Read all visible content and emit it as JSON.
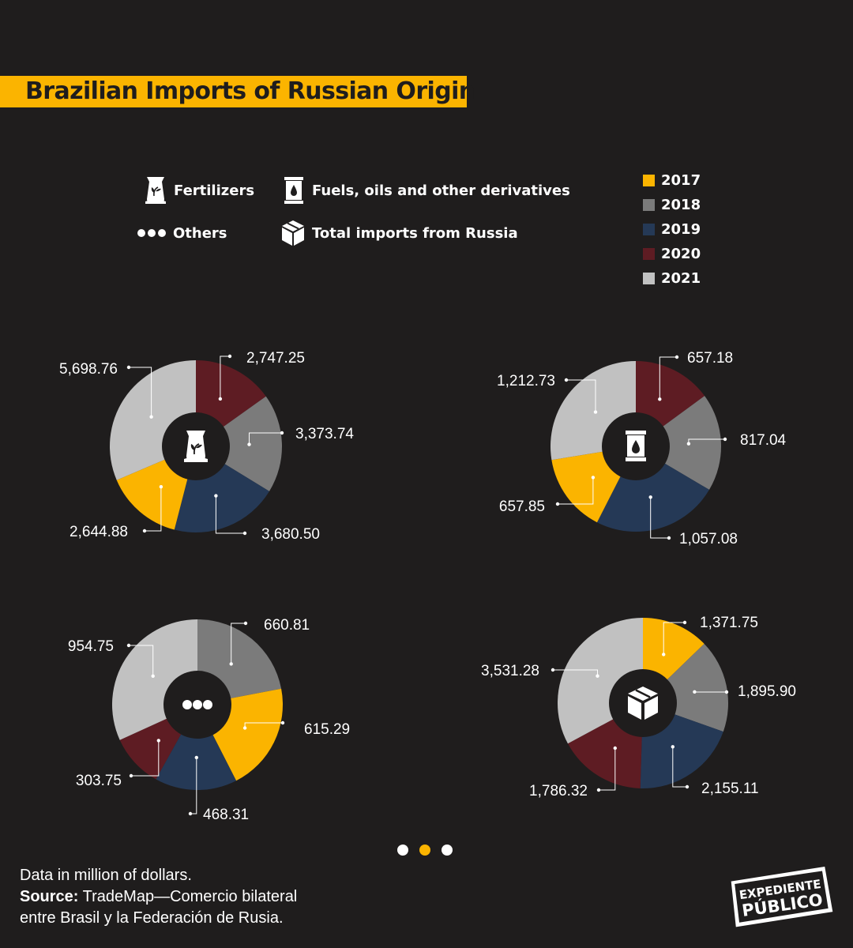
{
  "title": "Brazilian Imports of Russian Origin",
  "legend": {
    "categories": [
      {
        "label": "Fertilizers",
        "icon": "fertilizer-bag-icon"
      },
      {
        "label": "Fuels, oils and other derivatives",
        "icon": "oil-barrel-icon"
      },
      {
        "label": "Others",
        "icon": "dots-icon"
      },
      {
        "label": "Total imports from Russia",
        "icon": "box-icon"
      }
    ],
    "years": [
      {
        "label": "2017",
        "color": "#fbb400"
      },
      {
        "label": "2018",
        "color": "#7b7b7b"
      },
      {
        "label": "2019",
        "color": "#253956"
      },
      {
        "label": "2020",
        "color": "#5e1c23"
      },
      {
        "label": "2021",
        "color": "#c1c1c1"
      }
    ]
  },
  "chart_data": [
    {
      "type": "pie",
      "name": "Fertilizers",
      "icon": "fertilizer-bag-icon",
      "categories": [
        "2017",
        "2018",
        "2019",
        "2020",
        "2021"
      ],
      "values": [
        2644.88,
        3373.74,
        3680.5,
        2747.25,
        5698.76
      ],
      "labels": [
        "2,644.88",
        "3,373.74",
        "3,680.50",
        "2,747.25",
        "5,698.76"
      ],
      "order_clockwise_from_top": [
        "2020",
        "2018",
        "2019",
        "2017",
        "2021"
      ]
    },
    {
      "type": "pie",
      "name": "Fuels, oils and other derivatives",
      "icon": "oil-barrel-icon",
      "categories": [
        "2017",
        "2018",
        "2019",
        "2020",
        "2021"
      ],
      "values": [
        657.85,
        817.04,
        1057.08,
        657.18,
        1212.73
      ],
      "labels": [
        "657.85",
        "817.04",
        "1,057.08",
        "657.18",
        "1,212.73"
      ],
      "order_clockwise_from_top": [
        "2020",
        "2018",
        "2019",
        "2017",
        "2021"
      ]
    },
    {
      "type": "pie",
      "name": "Others",
      "icon": "dots-icon",
      "categories": [
        "2017",
        "2018",
        "2019",
        "2020",
        "2021"
      ],
      "values": [
        615.29,
        660.81,
        468.31,
        303.75,
        954.75
      ],
      "labels": [
        "615.29",
        "660.81",
        "468.31",
        "303.75",
        "954.75"
      ],
      "order_clockwise_from_top": [
        "2018",
        "2017",
        "2019",
        "2020",
        "2021"
      ]
    },
    {
      "type": "pie",
      "name": "Total imports from Russia",
      "icon": "box-icon",
      "categories": [
        "2017",
        "2018",
        "2019",
        "2020",
        "2021"
      ],
      "values": [
        1371.75,
        1895.9,
        2155.11,
        1786.32,
        3531.28
      ],
      "labels": [
        "1,371.75",
        "1,895.90",
        "2,155.11",
        "1,786.32",
        "3,531.28"
      ],
      "order_clockwise_from_top": [
        "2017",
        "2018",
        "2019",
        "2020",
        "2021"
      ]
    }
  ],
  "footer": {
    "note": "Data in million of dollars.",
    "source_label": "Source:",
    "source_line1": "TradeMap—Comercio bilateral",
    "source_line2": "entre Brasil y la Federación de Rusia."
  },
  "logo": {
    "line1": "EXPEDIENTE",
    "line2": "PÚBLICO"
  }
}
